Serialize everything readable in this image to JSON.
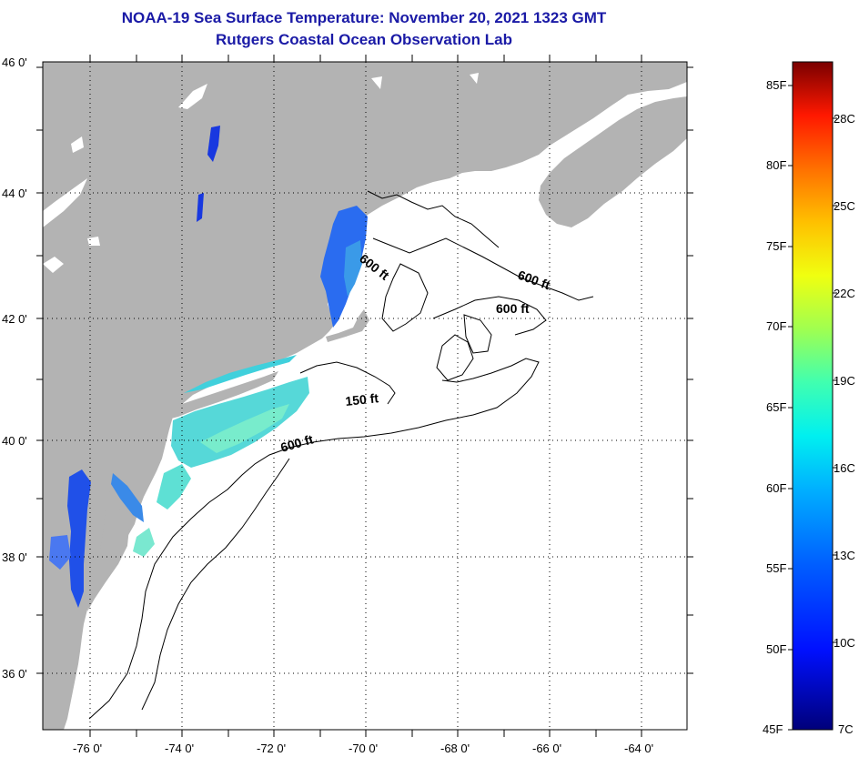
{
  "header": {
    "title": "NOAA-19 Sea Surface Temperature:  November 20, 2021 1323 GMT",
    "subtitle": "Rutgers Coastal Ocean Observation Lab"
  },
  "map": {
    "lat_labels": [
      "46 0'",
      "44 0'",
      "42 0'",
      "40 0'",
      "38 0'",
      "36 0'"
    ],
    "lon_labels": [
      "-76 0'",
      "-74 0'",
      "-72 0'",
      "-70 0'",
      "-68 0'",
      "-66 0'",
      "-64 0'"
    ],
    "contour_labels": [
      "600 ft",
      "600 ft",
      "600 ft",
      "150 ft",
      "600 ft"
    ]
  },
  "colorbar": {
    "fahrenheit": [
      "85F",
      "80F",
      "75F",
      "70F",
      "65F",
      "60F",
      "55F",
      "50F",
      "45F"
    ],
    "celsius": [
      "28C",
      "25C",
      "22C",
      "19C",
      "16C",
      "13C",
      "10C",
      "7C"
    ]
  },
  "colors": {
    "title": "#1a1aa6",
    "land": "#b3b3b3",
    "ocean": "#ffffff",
    "cold": "#1e3cff",
    "mid": "#30c8e8",
    "warm_mid": "#70e8c8"
  }
}
